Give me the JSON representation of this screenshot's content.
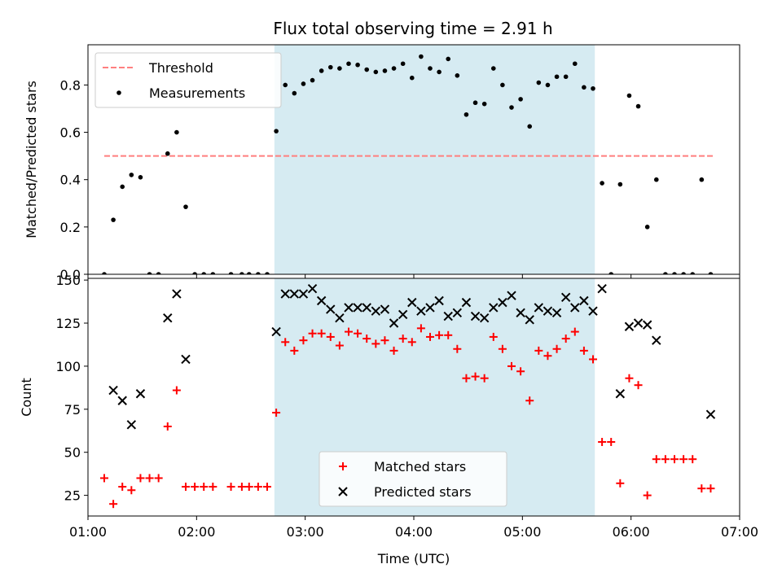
{
  "title": "Flux total observing time = 2.91 h",
  "chart_data": [
    {
      "type": "scatter",
      "panel": "top",
      "title": "Flux total observing time = 2.91 h",
      "xlabel": "",
      "ylabel": "Matched/Predicted stars",
      "xlim": [
        "01:00",
        "07:00"
      ],
      "ylim": [
        0,
        0.97
      ],
      "yticks": [
        0.0,
        0.2,
        0.4,
        0.6,
        0.8
      ],
      "ytick_labels": [
        "0.0",
        "0.2",
        "0.4",
        "0.6",
        "0.8"
      ],
      "xticks": [
        "01:00",
        "02:00",
        "03:00",
        "04:00",
        "05:00",
        "06:00",
        "07:00"
      ],
      "shaded_region": {
        "x": [
          "02:43",
          "05:40"
        ],
        "color": "#add8e6"
      },
      "legend_position": "upper-left",
      "threshold": {
        "name": "Threshold",
        "value": 0.5,
        "x": [
          "01:09",
          "06:46"
        ],
        "color": "#ff7f7f"
      },
      "series": [
        {
          "name": "Measurements",
          "color": "#000000",
          "points": [
            [
              "01:09",
              0.0
            ],
            [
              "01:14",
              0.23
            ],
            [
              "01:19",
              0.37
            ],
            [
              "01:24",
              0.42
            ],
            [
              "01:29",
              0.41
            ],
            [
              "01:34",
              0.0
            ],
            [
              "01:39",
              0.0
            ],
            [
              "01:44",
              0.51
            ],
            [
              "01:49",
              0.6
            ],
            [
              "01:54",
              0.285
            ],
            [
              "01:59",
              0.0
            ],
            [
              "02:04",
              0.0
            ],
            [
              "02:09",
              0.0
            ],
            [
              "02:19",
              0.0
            ],
            [
              "02:25",
              0.0
            ],
            [
              "02:29",
              0.0
            ],
            [
              "02:34",
              0.0
            ],
            [
              "02:39",
              0.0
            ],
            [
              "02:44",
              0.605
            ],
            [
              "02:49",
              0.8
            ],
            [
              "02:54",
              0.765
            ],
            [
              "02:59",
              0.805
            ],
            [
              "03:04",
              0.82
            ],
            [
              "03:09",
              0.86
            ],
            [
              "03:14",
              0.875
            ],
            [
              "03:19",
              0.87
            ],
            [
              "03:24",
              0.89
            ],
            [
              "03:29",
              0.885
            ],
            [
              "03:34",
              0.865
            ],
            [
              "03:39",
              0.855
            ],
            [
              "03:44",
              0.86
            ],
            [
              "03:49",
              0.87
            ],
            [
              "03:54",
              0.89
            ],
            [
              "03:59",
              0.83
            ],
            [
              "04:04",
              0.92
            ],
            [
              "04:09",
              0.87
            ],
            [
              "04:14",
              0.855
            ],
            [
              "04:19",
              0.91
            ],
            [
              "04:24",
              0.84
            ],
            [
              "04:29",
              0.675
            ],
            [
              "04:34",
              0.725
            ],
            [
              "04:39",
              0.72
            ],
            [
              "04:44",
              0.87
            ],
            [
              "04:49",
              0.8
            ],
            [
              "04:54",
              0.705
            ],
            [
              "04:59",
              0.74
            ],
            [
              "05:04",
              0.625
            ],
            [
              "05:09",
              0.81
            ],
            [
              "05:14",
              0.8
            ],
            [
              "05:19",
              0.835
            ],
            [
              "05:24",
              0.835
            ],
            [
              "05:29",
              0.89
            ],
            [
              "05:34",
              0.79
            ],
            [
              "05:39",
              0.785
            ],
            [
              "05:44",
              0.385
            ],
            [
              "05:49",
              0.0
            ],
            [
              "05:54",
              0.38
            ],
            [
              "05:59",
              0.755
            ],
            [
              "06:04",
              0.71
            ],
            [
              "06:09",
              0.2
            ],
            [
              "06:14",
              0.4
            ],
            [
              "06:19",
              0.0
            ],
            [
              "06:24",
              0.0
            ],
            [
              "06:29",
              0.0
            ],
            [
              "06:34",
              0.0
            ],
            [
              "06:39",
              0.4
            ],
            [
              "06:44",
              0.0
            ]
          ]
        }
      ]
    },
    {
      "type": "scatter",
      "panel": "bottom",
      "title": "",
      "xlabel": "Time (UTC)",
      "ylabel": "Count",
      "xlim": [
        "01:00",
        "07:00"
      ],
      "ylim": [
        13,
        151
      ],
      "yticks": [
        25,
        50,
        75,
        100,
        125,
        150
      ],
      "ytick_labels": [
        "25",
        "50",
        "75",
        "100",
        "125",
        "150"
      ],
      "xticks": [
        "01:00",
        "02:00",
        "03:00",
        "04:00",
        "05:00",
        "06:00",
        "07:00"
      ],
      "xtick_labels": [
        "01:00",
        "02:00",
        "03:00",
        "04:00",
        "05:00",
        "06:00",
        "07:00"
      ],
      "shaded_region": {
        "x": [
          "02:43",
          "05:40"
        ],
        "color": "#add8e6"
      },
      "legend_position": "lower-center",
      "series": [
        {
          "name": "Matched stars",
          "marker": "plus",
          "color": "#ff0000",
          "points": [
            [
              "01:09",
              35
            ],
            [
              "01:14",
              20
            ],
            [
              "01:19",
              30
            ],
            [
              "01:24",
              28
            ],
            [
              "01:29",
              35
            ],
            [
              "01:34",
              35
            ],
            [
              "01:39",
              35
            ],
            [
              "01:44",
              65
            ],
            [
              "01:49",
              86
            ],
            [
              "01:54",
              30
            ],
            [
              "01:59",
              30
            ],
            [
              "02:04",
              30
            ],
            [
              "02:09",
              30
            ],
            [
              "02:19",
              30
            ],
            [
              "02:25",
              30
            ],
            [
              "02:29",
              30
            ],
            [
              "02:34",
              30
            ],
            [
              "02:39",
              30
            ],
            [
              "02:44",
              73
            ],
            [
              "02:49",
              114
            ],
            [
              "02:54",
              109
            ],
            [
              "02:59",
              115
            ],
            [
              "03:04",
              119
            ],
            [
              "03:09",
              119
            ],
            [
              "03:14",
              117
            ],
            [
              "03:19",
              112
            ],
            [
              "03:24",
              120
            ],
            [
              "03:29",
              119
            ],
            [
              "03:34",
              116
            ],
            [
              "03:39",
              113
            ],
            [
              "03:44",
              115
            ],
            [
              "03:49",
              109
            ],
            [
              "03:54",
              116
            ],
            [
              "03:59",
              114
            ],
            [
              "04:04",
              122
            ],
            [
              "04:09",
              117
            ],
            [
              "04:14",
              118
            ],
            [
              "04:19",
              118
            ],
            [
              "04:24",
              110
            ],
            [
              "04:29",
              93
            ],
            [
              "04:34",
              94
            ],
            [
              "04:39",
              93
            ],
            [
              "04:44",
              117
            ],
            [
              "04:49",
              110
            ],
            [
              "04:54",
              100
            ],
            [
              "04:59",
              97
            ],
            [
              "05:04",
              80
            ],
            [
              "05:09",
              109
            ],
            [
              "05:14",
              106
            ],
            [
              "05:19",
              110
            ],
            [
              "05:24",
              116
            ],
            [
              "05:29",
              120
            ],
            [
              "05:34",
              109
            ],
            [
              "05:39",
              104
            ],
            [
              "05:44",
              56
            ],
            [
              "05:49",
              56
            ],
            [
              "05:54",
              32
            ],
            [
              "05:59",
              93
            ],
            [
              "06:04",
              89
            ],
            [
              "06:09",
              25
            ],
            [
              "06:14",
              46
            ],
            [
              "06:19",
              46
            ],
            [
              "06:24",
              46
            ],
            [
              "06:29",
              46
            ],
            [
              "06:34",
              46
            ],
            [
              "06:39",
              29
            ],
            [
              "06:44",
              29
            ]
          ]
        },
        {
          "name": "Predicted stars",
          "marker": "x",
          "color": "#000000",
          "points": [
            [
              "01:14",
              86
            ],
            [
              "01:19",
              80
            ],
            [
              "01:24",
              66
            ],
            [
              "01:29",
              84
            ],
            [
              "01:44",
              128
            ],
            [
              "01:49",
              142
            ],
            [
              "01:54",
              104
            ],
            [
              "02:44",
              120
            ],
            [
              "02:49",
              142
            ],
            [
              "02:54",
              142
            ],
            [
              "02:59",
              142
            ],
            [
              "03:04",
              145
            ],
            [
              "03:09",
              138
            ],
            [
              "03:14",
              133
            ],
            [
              "03:19",
              128
            ],
            [
              "03:24",
              134
            ],
            [
              "03:29",
              134
            ],
            [
              "03:34",
              134
            ],
            [
              "03:39",
              132
            ],
            [
              "03:44",
              133
            ],
            [
              "03:49",
              125
            ],
            [
              "03:54",
              130
            ],
            [
              "03:59",
              137
            ],
            [
              "04:04",
              132
            ],
            [
              "04:09",
              134
            ],
            [
              "04:14",
              138
            ],
            [
              "04:19",
              129
            ],
            [
              "04:24",
              131
            ],
            [
              "04:29",
              137
            ],
            [
              "04:34",
              129
            ],
            [
              "04:39",
              128
            ],
            [
              "04:44",
              134
            ],
            [
              "04:49",
              137
            ],
            [
              "04:54",
              141
            ],
            [
              "04:59",
              131
            ],
            [
              "05:04",
              127
            ],
            [
              "05:09",
              134
            ],
            [
              "05:14",
              132
            ],
            [
              "05:19",
              131
            ],
            [
              "05:24",
              140
            ],
            [
              "05:29",
              134
            ],
            [
              "05:34",
              138
            ],
            [
              "05:39",
              132
            ],
            [
              "05:44",
              145
            ],
            [
              "05:54",
              84
            ],
            [
              "05:59",
              123
            ],
            [
              "06:04",
              125
            ],
            [
              "06:09",
              124
            ],
            [
              "06:14",
              115
            ],
            [
              "06:44",
              72
            ]
          ]
        }
      ]
    }
  ]
}
